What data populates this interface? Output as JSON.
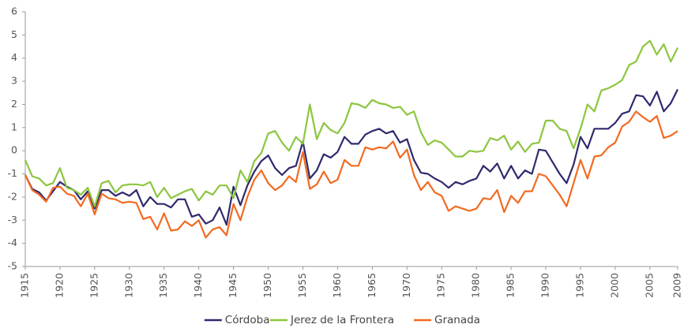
{
  "chart_data": {
    "type": "line",
    "x": [
      1915,
      1916,
      1917,
      1918,
      1919,
      1920,
      1921,
      1922,
      1923,
      1924,
      1925,
      1926,
      1927,
      1928,
      1929,
      1930,
      1931,
      1932,
      1933,
      1934,
      1935,
      1936,
      1937,
      1938,
      1939,
      1940,
      1941,
      1942,
      1943,
      1944,
      1945,
      1946,
      1947,
      1948,
      1949,
      1950,
      1951,
      1952,
      1953,
      1954,
      1955,
      1956,
      1957,
      1958,
      1959,
      1960,
      1961,
      1962,
      1963,
      1964,
      1965,
      1966,
      1967,
      1968,
      1969,
      1970,
      1971,
      1972,
      1973,
      1974,
      1975,
      1976,
      1977,
      1978,
      1979,
      1980,
      1981,
      1982,
      1983,
      1984,
      1985,
      1986,
      1987,
      1988,
      1989,
      1990,
      1991,
      1992,
      1993,
      1994,
      1995,
      1996,
      1997,
      1998,
      1999,
      2000,
      2001,
      2002,
      2003,
      2004,
      2005,
      2006,
      2007,
      2008,
      2009
    ],
    "series": [
      {
        "name": "Córdoba",
        "color": "#2e2a6e",
        "values": [
          -1.05,
          -1.65,
          -1.8,
          -2.15,
          -1.75,
          -1.35,
          -1.55,
          -1.7,
          -2.1,
          -1.75,
          -2.5,
          -1.7,
          -1.7,
          -1.95,
          -1.8,
          -1.95,
          -1.7,
          -2.4,
          -2.0,
          -2.3,
          -2.3,
          -2.45,
          -2.1,
          -2.1,
          -2.85,
          -2.75,
          -3.15,
          -3.0,
          -2.45,
          -3.2,
          -1.55,
          -2.35,
          -1.5,
          -0.9,
          -0.45,
          -0.2,
          -0.75,
          -1.05,
          -0.75,
          -0.65,
          0.4,
          -1.2,
          -0.85,
          -0.15,
          -0.3,
          -0.05,
          0.6,
          0.3,
          0.3,
          0.7,
          0.85,
          0.95,
          0.75,
          0.85,
          0.35,
          0.5,
          -0.4,
          -0.95,
          -1.0,
          -1.2,
          -1.35,
          -1.6,
          -1.35,
          -1.45,
          -1.3,
          -1.2,
          -0.65,
          -0.9,
          -0.55,
          -1.2,
          -0.65,
          -1.2,
          -0.85,
          -1.0,
          0.05,
          0.0,
          -0.5,
          -1.0,
          -1.4,
          -0.6,
          0.6,
          0.1,
          0.95,
          0.95,
          0.95,
          1.2,
          1.6,
          1.7,
          2.4,
          2.35,
          1.95,
          2.55,
          1.7,
          2.05,
          2.65
        ]
      },
      {
        "name": "Jerez de la Frontera",
        "color": "#8cc63f",
        "values": [
          -0.4,
          -1.1,
          -1.2,
          -1.5,
          -1.4,
          -0.75,
          -1.6,
          -1.7,
          -1.9,
          -1.6,
          -2.4,
          -1.4,
          -1.3,
          -1.8,
          -1.5,
          -1.45,
          -1.45,
          -1.5,
          -1.35,
          -2.0,
          -1.6,
          -2.05,
          -1.9,
          -1.75,
          -1.65,
          -2.15,
          -1.75,
          -1.9,
          -1.5,
          -1.5,
          -2.05,
          -0.85,
          -1.35,
          -0.45,
          -0.1,
          0.75,
          0.85,
          0.35,
          0.0,
          0.6,
          0.3,
          2.0,
          0.5,
          1.2,
          0.9,
          0.75,
          1.2,
          2.05,
          2.0,
          1.85,
          2.2,
          2.05,
          2.0,
          1.85,
          1.9,
          1.55,
          1.7,
          0.8,
          0.25,
          0.45,
          0.35,
          0.05,
          -0.25,
          -0.25,
          0.0,
          -0.05,
          0.0,
          0.55,
          0.45,
          0.65,
          0.05,
          0.4,
          -0.05,
          0.3,
          0.35,
          1.3,
          1.3,
          0.95,
          0.85,
          0.1,
          0.95,
          2.0,
          1.7,
          2.6,
          2.7,
          2.85,
          3.05,
          3.7,
          3.85,
          4.5,
          4.75,
          4.15,
          4.6,
          3.85,
          4.45
        ]
      },
      {
        "name": "Granada",
        "color": "#f26a21",
        "values": [
          -1.05,
          -1.7,
          -1.9,
          -2.2,
          -1.6,
          -1.55,
          -1.85,
          -1.95,
          -2.4,
          -1.85,
          -2.75,
          -1.85,
          -2.05,
          -2.1,
          -2.25,
          -2.2,
          -2.25,
          -2.95,
          -2.85,
          -3.4,
          -2.7,
          -3.45,
          -3.4,
          -3.05,
          -3.25,
          -3.0,
          -3.75,
          -3.4,
          -3.3,
          -3.65,
          -2.3,
          -3.0,
          -2.0,
          -1.25,
          -0.85,
          -1.4,
          -1.7,
          -1.5,
          -1.1,
          -1.35,
          -0.05,
          -1.65,
          -1.45,
          -0.9,
          -1.4,
          -1.25,
          -0.4,
          -0.65,
          -0.65,
          0.15,
          0.05,
          0.15,
          0.1,
          0.4,
          -0.3,
          0.05,
          -1.05,
          -1.7,
          -1.35,
          -1.8,
          -1.95,
          -2.6,
          -2.4,
          -2.5,
          -2.6,
          -2.5,
          -2.05,
          -2.1,
          -1.7,
          -2.65,
          -1.95,
          -2.25,
          -1.75,
          -1.75,
          -1.0,
          -1.1,
          -1.5,
          -1.9,
          -2.4,
          -1.4,
          -0.4,
          -1.2,
          -0.25,
          -0.2,
          0.15,
          0.35,
          1.05,
          1.25,
          1.7,
          1.45,
          1.25,
          1.5,
          0.55,
          0.65,
          0.85
        ]
      }
    ],
    "xlim": [
      1915,
      2009
    ],
    "xticks": [
      1915,
      1920,
      1925,
      1930,
      1935,
      1940,
      1945,
      1950,
      1955,
      1960,
      1965,
      1970,
      1975,
      1980,
      1985,
      1990,
      1995,
      2000,
      2005,
      2009
    ],
    "ylim": [
      -5,
      6
    ],
    "yticks": [
      -5,
      -4,
      -3,
      -2,
      -1,
      0,
      1,
      2,
      3,
      4,
      5,
      6
    ],
    "grid": false,
    "legend": "bottom"
  }
}
